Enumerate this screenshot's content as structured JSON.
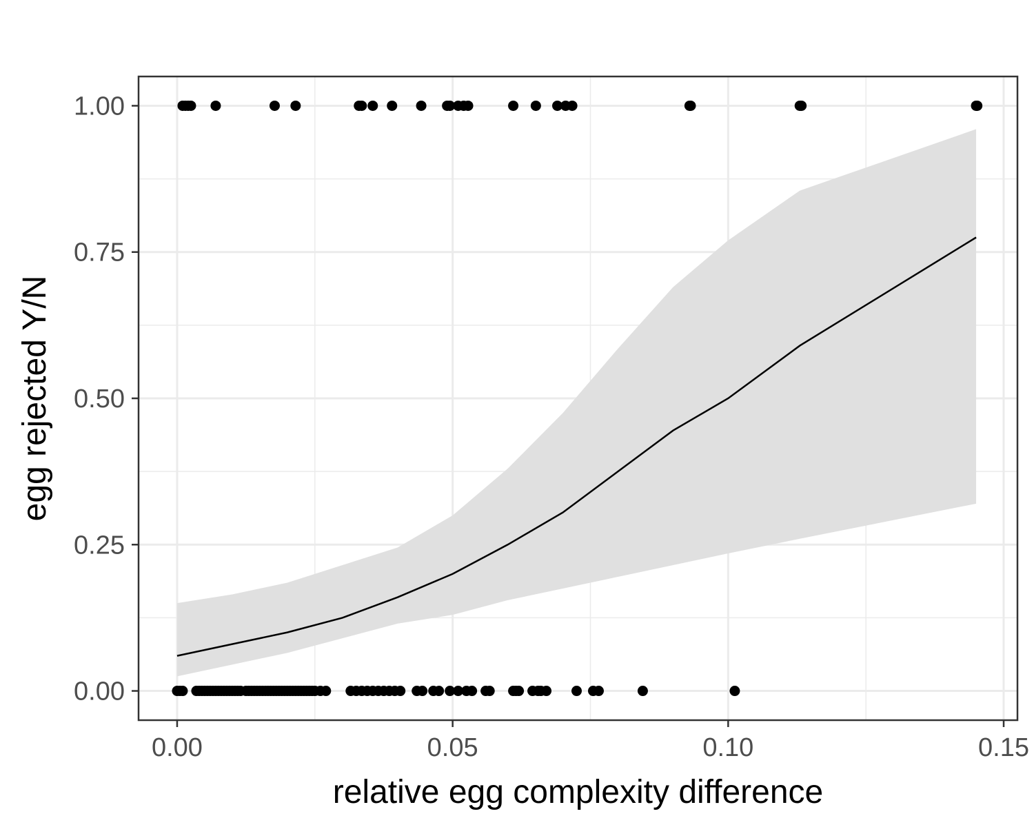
{
  "chart_data": {
    "type": "scatter",
    "title": "",
    "xlabel": "relative egg complexity difference",
    "ylabel": "egg rejected Y/N",
    "xlim": [
      -0.007,
      0.1525
    ],
    "ylim": [
      -0.05,
      1.05
    ],
    "x_ticks": [
      0.0,
      0.05,
      0.1,
      0.15
    ],
    "x_tick_labels": [
      "0.00",
      "0.05",
      "0.10",
      "0.15"
    ],
    "y_ticks": [
      0.0,
      0.25,
      0.5,
      0.75,
      1.0
    ],
    "y_tick_labels": [
      "0.00",
      "0.25",
      "0.50",
      "0.75",
      "1.00"
    ],
    "grid": true,
    "legend": "none",
    "colors": {
      "points": "#000000",
      "fit_line": "#000000",
      "ribbon": "#e0e0e0",
      "grid": "#ebebeb",
      "panel_border": "#333333"
    },
    "points_rejected": [
      0.001,
      0.0015,
      0.002,
      0.0025,
      0.007,
      0.0177,
      0.0215,
      0.033,
      0.0335,
      0.0355,
      0.039,
      0.0443,
      0.049,
      0.0495,
      0.051,
      0.052,
      0.0528,
      0.061,
      0.0651,
      0.069,
      0.0705,
      0.0717,
      0.093,
      0.0932,
      0.113,
      0.1133,
      0.145,
      0.1452
    ],
    "points_not_rejected": [
      0.0,
      0.0005,
      0.001,
      0.0035,
      0.004,
      0.0045,
      0.005,
      0.0055,
      0.006,
      0.0065,
      0.007,
      0.0075,
      0.008,
      0.0085,
      0.009,
      0.0095,
      0.01,
      0.0105,
      0.011,
      0.0115,
      0.0125,
      0.013,
      0.0135,
      0.014,
      0.0145,
      0.015,
      0.0155,
      0.016,
      0.0165,
      0.017,
      0.0175,
      0.018,
      0.0185,
      0.019,
      0.0195,
      0.02,
      0.0205,
      0.021,
      0.0215,
      0.022,
      0.0225,
      0.023,
      0.0235,
      0.024,
      0.0245,
      0.025,
      0.026,
      0.027,
      0.0315,
      0.0325,
      0.0335,
      0.0345,
      0.0355,
      0.0365,
      0.0375,
      0.0385,
      0.0395,
      0.0405,
      0.0435,
      0.0445,
      0.0465,
      0.0475,
      0.0495,
      0.051,
      0.0525,
      0.0535,
      0.056,
      0.0567,
      0.061,
      0.0615,
      0.062,
      0.0645,
      0.0655,
      0.066,
      0.067,
      0.0725,
      0.0755,
      0.0765,
      0.0845,
      0.1012
    ],
    "fit": {
      "x": [
        0.0,
        0.01,
        0.02,
        0.03,
        0.04,
        0.05,
        0.06,
        0.07,
        0.08,
        0.09,
        0.1,
        0.113,
        0.145
      ],
      "y": [
        0.06,
        0.08,
        0.1,
        0.125,
        0.16,
        0.2,
        0.25,
        0.305,
        0.375,
        0.445,
        0.5,
        0.59,
        0.775
      ],
      "lower": [
        0.025,
        0.045,
        0.065,
        0.09,
        0.115,
        0.13,
        0.155,
        0.175,
        0.195,
        0.215,
        0.235,
        0.26,
        0.32
      ],
      "upper": [
        0.15,
        0.165,
        0.185,
        0.215,
        0.245,
        0.3,
        0.38,
        0.475,
        0.585,
        0.69,
        0.77,
        0.855,
        0.96
      ]
    }
  }
}
